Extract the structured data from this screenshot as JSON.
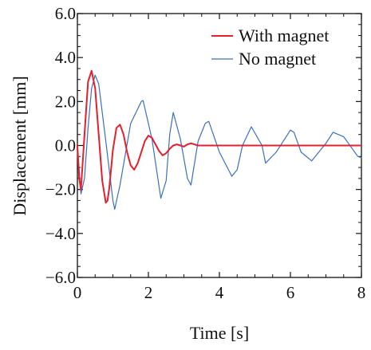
{
  "chart_data": {
    "type": "line",
    "xlabel": "Time [s]",
    "ylabel": "Displacement [mm]",
    "xlim": [
      0,
      8
    ],
    "ylim": [
      -6.0,
      6.0
    ],
    "x_ticks": [
      0,
      2,
      4,
      6,
      8
    ],
    "x_tick_labels": [
      "0",
      "2",
      "4",
      "6",
      "8"
    ],
    "y_ticks": [
      -6.0,
      -4.0,
      -2.0,
      0.0,
      2.0,
      4.0,
      6.0
    ],
    "y_tick_labels": [
      "−6.0",
      "−4.0",
      "−2.0",
      "0.0",
      "2.0",
      "4.0",
      "6.0"
    ],
    "grid": false,
    "legend_position": "top-right",
    "series": [
      {
        "name": "With magnet",
        "color": "#e3202b",
        "x": [
          0.0,
          0.05,
          0.1,
          0.2,
          0.3,
          0.4,
          0.5,
          0.6,
          0.7,
          0.8,
          0.85,
          0.9,
          1.0,
          1.1,
          1.2,
          1.3,
          1.4,
          1.5,
          1.6,
          1.7,
          1.8,
          1.9,
          2.0,
          2.1,
          2.2,
          2.3,
          2.4,
          2.5,
          2.6,
          2.7,
          2.8,
          2.9,
          3.0,
          3.1,
          3.2,
          3.3,
          3.4,
          3.6,
          4.0,
          5.0,
          6.0,
          7.0,
          8.0
        ],
        "y": [
          0.0,
          -1.5,
          -2.0,
          0.5,
          2.9,
          3.4,
          2.6,
          0.5,
          -1.6,
          -2.6,
          -2.5,
          -1.9,
          -0.2,
          0.8,
          0.95,
          0.5,
          -0.3,
          -0.9,
          -1.1,
          -0.8,
          -0.3,
          0.2,
          0.45,
          0.35,
          0.05,
          -0.25,
          -0.45,
          -0.35,
          -0.15,
          0.0,
          0.05,
          0.0,
          -0.05,
          0.05,
          0.1,
          0.05,
          0.0,
          0.0,
          0.0,
          0.0,
          0.0,
          0.0,
          0.0
        ]
      },
      {
        "name": "No magnet",
        "color": "#3b6fc0",
        "x": [
          0.0,
          0.1,
          0.2,
          0.3,
          0.4,
          0.5,
          0.6,
          0.8,
          1.0,
          1.05,
          1.2,
          1.5,
          1.8,
          1.85,
          2.1,
          2.35,
          2.5,
          2.6,
          2.7,
          2.9,
          3.1,
          3.2,
          3.4,
          3.6,
          3.7,
          4.0,
          4.35,
          4.5,
          4.65,
          4.9,
          5.2,
          5.3,
          5.6,
          6.0,
          6.1,
          6.3,
          6.6,
          7.0,
          7.2,
          7.5,
          7.9,
          8.0
        ],
        "y": [
          0.0,
          -2.2,
          -1.5,
          0.8,
          2.6,
          3.2,
          2.8,
          0.2,
          -2.5,
          -2.9,
          -1.8,
          1.0,
          2.0,
          2.05,
          0.3,
          -2.4,
          -1.6,
          0.5,
          1.5,
          0.3,
          -1.5,
          -1.8,
          0.2,
          1.0,
          1.1,
          -0.3,
          -1.4,
          -1.1,
          0.0,
          0.85,
          0.0,
          -0.8,
          -0.3,
          0.7,
          0.6,
          -0.3,
          -0.7,
          0.1,
          0.6,
          0.4,
          -0.5,
          -0.55
        ]
      }
    ]
  }
}
